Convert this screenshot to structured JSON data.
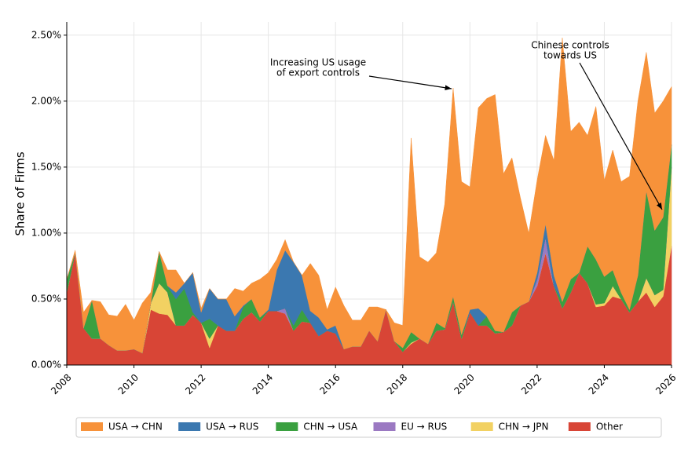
{
  "chart_data": {
    "type": "stacked_area",
    "y_label": "Share of Firms",
    "x": [
      2008,
      2008.25,
      2008.5,
      2008.75,
      2009,
      2009.25,
      2009.5,
      2009.75,
      2010,
      2010.25,
      2010.5,
      2010.75,
      2011,
      2011.25,
      2011.5,
      2011.75,
      2012,
      2012.25,
      2012.5,
      2012.75,
      2013,
      2013.25,
      2013.5,
      2013.75,
      2014,
      2014.25,
      2014.5,
      2014.75,
      2015,
      2015.25,
      2015.5,
      2015.75,
      2016,
      2016.25,
      2016.5,
      2016.75,
      2017,
      2017.25,
      2017.5,
      2017.75,
      2018,
      2018.25,
      2018.5,
      2018.75,
      2019,
      2019.25,
      2019.5,
      2019.75,
      2020,
      2020.25,
      2020.5,
      2020.75,
      2021,
      2021.25,
      2021.5,
      2021.75,
      2022,
      2022.25,
      2022.5,
      2022.75,
      2023,
      2023.25,
      2023.5,
      2023.75,
      2024,
      2024.25,
      2024.5,
      2024.75,
      2025,
      2025.25,
      2025.5,
      2025.75,
      2026
    ],
    "series": [
      {
        "name": "USA → CHN",
        "color": "#f7923a",
        "values": [
          0,
          0.02,
          0.12,
          0,
          0.28,
          0.23,
          0.26,
          0.35,
          0.22,
          0.38,
          0.08,
          0,
          0.12,
          0.17,
          0,
          0,
          0.03,
          0,
          0,
          0,
          0.21,
          0.11,
          0.12,
          0.29,
          0.28,
          0.08,
          0.08,
          0,
          0,
          0.36,
          0.32,
          0.15,
          0.29,
          0.33,
          0.2,
          0.2,
          0.18,
          0.26,
          0,
          0.14,
          0.17,
          1.47,
          0.62,
          0.62,
          0.53,
          0.94,
          1.58,
          1.16,
          0.93,
          1.52,
          1.65,
          1.79,
          1.2,
          1.17,
          0.82,
          0.52,
          0.7,
          0.67,
          0.87,
          2.0,
          1.12,
          1.14,
          0.84,
          1.16,
          0.73,
          0.91,
          0.84,
          1.01,
          1.32,
          1.05,
          0.89,
          0.88,
          0.44
        ]
      },
      {
        "name": "USA → RUS",
        "color": "#3b78b0",
        "values": [
          0,
          0,
          0,
          0,
          0,
          0,
          0,
          0,
          0,
          0,
          0,
          0,
          0,
          0.05,
          0.04,
          0.3,
          0.08,
          0.23,
          0.2,
          0.24,
          0.11,
          0.01,
          0,
          0,
          0.01,
          0.31,
          0.44,
          0.48,
          0.26,
          0.09,
          0.14,
          0.01,
          0.06,
          0,
          0,
          0,
          0,
          0,
          0,
          0,
          0,
          0,
          0,
          0,
          0,
          0,
          0,
          0,
          0.02,
          0.13,
          0,
          0,
          0,
          0,
          0,
          0,
          0.05,
          0.1,
          0.08,
          0,
          0,
          0,
          0,
          0,
          0,
          0,
          0,
          0,
          0,
          0,
          0,
          0,
          0
        ]
      },
      {
        "name": "CHN → USA",
        "color": "#3aa040",
        "values": [
          0.1,
          0,
          0,
          0.29,
          0,
          0,
          0,
          0,
          0,
          0,
          0,
          0.24,
          0.05,
          0.2,
          0.28,
          0.02,
          0,
          0.15,
          0,
          0,
          0,
          0.09,
          0.1,
          0.03,
          0,
          0,
          0,
          0.04,
          0.09,
          0,
          0,
          0,
          0,
          0,
          0,
          0,
          0,
          0,
          0,
          0,
          0.03,
          0.08,
          0,
          0,
          0.06,
          0.01,
          0.04,
          0.03,
          0,
          0,
          0.07,
          0.02,
          0,
          0.1,
          0,
          0,
          0,
          0,
          0,
          0.05,
          0.1,
          0,
          0.28,
          0.34,
          0.2,
          0.12,
          0.05,
          0.02,
          0.2,
          0.66,
          0.49,
          0.55,
          0.17
        ]
      },
      {
        "name": "EU → RUS",
        "color": "#9b79c2",
        "values": [
          0,
          0,
          0,
          0,
          0,
          0,
          0,
          0,
          0,
          0,
          0,
          0,
          0,
          0,
          0,
          0,
          0,
          0,
          0,
          0,
          0,
          0,
          0,
          0,
          0,
          0,
          0.04,
          0,
          0,
          0,
          0,
          0,
          0,
          0,
          0,
          0,
          0,
          0,
          0,
          0,
          0,
          0,
          0,
          0,
          0,
          0,
          0,
          0,
          0,
          0,
          0,
          0,
          0,
          0,
          0,
          0,
          0.05,
          0.12,
          0,
          0,
          0,
          0,
          0,
          0,
          0,
          0,
          0,
          0,
          0,
          0,
          0,
          0,
          0
        ]
      },
      {
        "name": "CHN → JPN",
        "color": "#f2d162",
        "values": [
          0,
          0,
          0,
          0,
          0,
          0,
          0,
          0,
          0,
          0,
          0.05,
          0.23,
          0.17,
          0,
          0,
          0,
          0,
          0.07,
          0,
          0,
          0,
          0,
          0,
          0,
          0,
          0,
          0,
          0,
          0,
          0,
          0,
          0,
          0,
          0,
          0,
          0,
          0,
          0,
          0,
          0,
          0,
          0.01,
          0,
          0,
          0,
          0,
          0,
          0,
          0,
          0,
          0,
          0,
          0,
          0,
          0,
          0,
          0,
          0,
          0,
          0,
          0,
          0,
          0,
          0.02,
          0.02,
          0.08,
          0,
          0,
          0,
          0.11,
          0.09,
          0.05,
          0.6
        ]
      },
      {
        "name": "Other",
        "color": "#d84536",
        "values": [
          0.55,
          0.85,
          0.28,
          0.2,
          0.2,
          0.15,
          0.11,
          0.11,
          0.12,
          0.09,
          0.42,
          0.39,
          0.38,
          0.3,
          0.3,
          0.38,
          0.32,
          0.13,
          0.3,
          0.26,
          0.26,
          0.35,
          0.4,
          0.33,
          0.41,
          0.41,
          0.39,
          0.26,
          0.33,
          0.32,
          0.22,
          0.26,
          0.24,
          0.12,
          0.14,
          0.14,
          0.26,
          0.18,
          0.42,
          0.18,
          0.1,
          0.16,
          0.2,
          0.16,
          0.26,
          0.27,
          0.48,
          0.2,
          0.4,
          0.3,
          0.3,
          0.24,
          0.25,
          0.3,
          0.45,
          0.48,
          0.6,
          0.85,
          0.6,
          0.43,
          0.55,
          0.7,
          0.62,
          0.44,
          0.45,
          0.52,
          0.5,
          0.4,
          0.48,
          0.55,
          0.44,
          0.52,
          0.9
        ]
      }
    ],
    "xlim": [
      2008,
      2026
    ],
    "xticks": [
      2008,
      2010,
      2012,
      2014,
      2016,
      2018,
      2020,
      2022,
      2024,
      2026
    ],
    "ylim": [
      0,
      2.6
    ],
    "yticks": [
      {
        "value": 0,
        "label": "0.00%"
      },
      {
        "value": 0.5,
        "label": "0.50%"
      },
      {
        "value": 1,
        "label": "1.00%"
      },
      {
        "value": 1.5,
        "label": "1.50%"
      },
      {
        "value": 2,
        "label": "2.00%"
      },
      {
        "value": 2.5,
        "label": "2.50%"
      }
    ],
    "grid": true,
    "legend": "bottom",
    "annotations": [
      [
        "Increasing US usage",
        "of export controls"
      ],
      [
        "Chinese controls",
        "towards US"
      ]
    ]
  }
}
